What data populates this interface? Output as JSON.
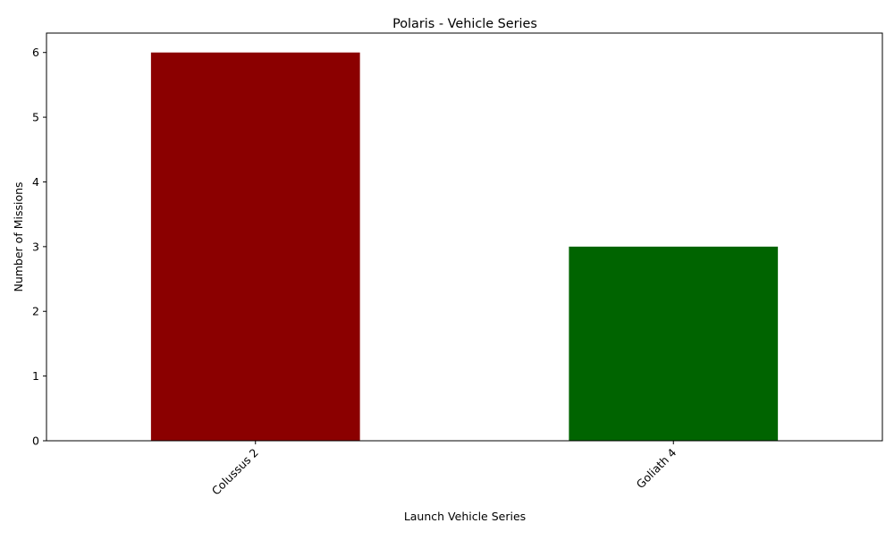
{
  "chart_data": {
    "type": "bar",
    "title": "Polaris - Vehicle Series",
    "xlabel": "Launch Vehicle Series",
    "ylabel": "Number of Missions",
    "categories": [
      "Colussus 2",
      "Goliath 4"
    ],
    "values": [
      6,
      3
    ],
    "colors": [
      "#8b0000",
      "#006400"
    ],
    "ylim": [
      0,
      6.3
    ],
    "yticks": [
      "0",
      "1",
      "2",
      "3",
      "4",
      "5",
      "6"
    ],
    "grid": false,
    "legend": "none"
  }
}
